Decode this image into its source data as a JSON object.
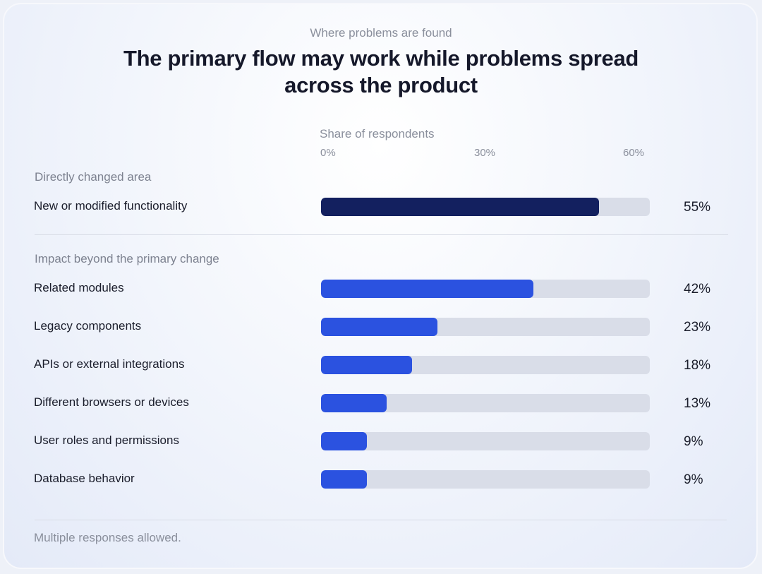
{
  "colors": {
    "primary_bar": "#13205f",
    "secondary_bar": "#2b52e0",
    "track": "#d9dde8"
  },
  "chart_data": {
    "type": "bar",
    "orientation": "horizontal",
    "eyebrow": "Where problems are found",
    "title": "The primary flow may work while problems spread across the product",
    "xlabel": "Share of respondents",
    "xlim": [
      0,
      65
    ],
    "ticks": [
      "0%",
      "30%",
      "60%"
    ],
    "groups": [
      {
        "label": "Directly changed area",
        "bars": [
          {
            "category": "New or modified functionality",
            "value": 55,
            "value_label": "55%",
            "style": "primary"
          }
        ]
      },
      {
        "label": "Impact beyond the primary change",
        "bars": [
          {
            "category": "Related modules",
            "value": 42,
            "value_label": "42%",
            "style": "secondary"
          },
          {
            "category": "Legacy components",
            "value": 23,
            "value_label": "23%",
            "style": "secondary"
          },
          {
            "category": "APIs or external integrations",
            "value": 18,
            "value_label": "18%",
            "style": "secondary"
          },
          {
            "category": "Different browsers or devices",
            "value": 13,
            "value_label": "13%",
            "style": "secondary"
          },
          {
            "category": "User roles and permissions",
            "value": 9,
            "value_label": "9%",
            "style": "secondary"
          },
          {
            "category": "Database behavior",
            "value": 9,
            "value_label": "9%",
            "style": "secondary"
          }
        ]
      }
    ],
    "footnote": "Multiple responses allowed."
  }
}
